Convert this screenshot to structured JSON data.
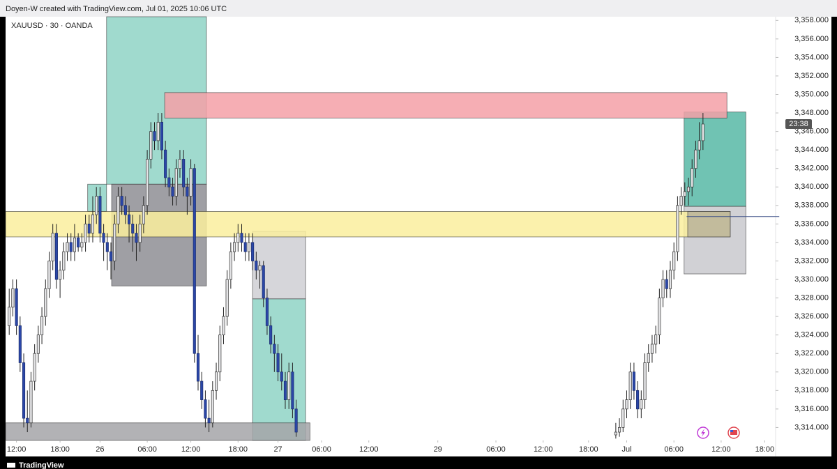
{
  "header": {
    "text": "Doyen-W created with TradingView.com, Jul 01, 2025 10:06 UTC"
  },
  "footer": {
    "brand": "TradingView"
  },
  "chart_data": {
    "type": "candlestick",
    "title": "XAUUSD · 30 · OANDA",
    "up_color": "#e4e4e6",
    "down_color": "#2b47a8",
    "xlim": [
      -3,
      209
    ],
    "ylim": [
      3312.6,
      3358.4
    ],
    "xticks": [
      {
        "value": 0,
        "label": "12:00"
      },
      {
        "value": 12,
        "label": "18:00"
      },
      {
        "value": 23,
        "label": "26"
      },
      {
        "value": 36,
        "label": "06:00"
      },
      {
        "value": 48,
        "label": "12:00"
      },
      {
        "value": 61,
        "label": "18:00"
      },
      {
        "value": 72,
        "label": "27"
      },
      {
        "value": 84,
        "label": "06:00"
      },
      {
        "value": 97,
        "label": "12:00"
      },
      {
        "value": 116,
        "label": "29"
      },
      {
        "value": 132,
        "label": "06:00"
      },
      {
        "value": 145,
        "label": "12:00"
      },
      {
        "value": 157.5,
        "label": "18:00"
      },
      {
        "value": 168,
        "label": "Jul"
      },
      {
        "value": 181,
        "label": "06:00"
      },
      {
        "value": 194,
        "label": "12:00"
      },
      {
        "value": 206,
        "label": "18:00"
      }
    ],
    "yticks": [
      {
        "value": 3314,
        "label": "3,314.000"
      },
      {
        "value": 3316,
        "label": "3,316.000"
      },
      {
        "value": 3318,
        "label": "3,318.000"
      },
      {
        "value": 3320,
        "label": "3,320.000"
      },
      {
        "value": 3322,
        "label": "3,322.000"
      },
      {
        "value": 3324,
        "label": "3,324.000"
      },
      {
        "value": 3326,
        "label": "3,326.000"
      },
      {
        "value": 3328,
        "label": "3,328.000"
      },
      {
        "value": 3330,
        "label": "3,330.000"
      },
      {
        "value": 3332,
        "label": "3,332.000"
      },
      {
        "value": 3334,
        "label": "3,334.000"
      },
      {
        "value": 3336,
        "label": "3,336.000"
      },
      {
        "value": 3338,
        "label": "3,338.000"
      },
      {
        "value": 3340,
        "label": "3,340.000"
      },
      {
        "value": 3342,
        "label": "3,342.000"
      },
      {
        "value": 3344,
        "label": "3,344.000"
      },
      {
        "value": 3346,
        "label": "3,346.000"
      },
      {
        "value": 3348,
        "label": "3,348.000"
      },
      {
        "value": 3350,
        "label": "3,350.000"
      },
      {
        "value": 3352,
        "label": "3,352.000"
      },
      {
        "value": 3354,
        "label": "3,354.000"
      },
      {
        "value": 3356,
        "label": "3,356.000"
      },
      {
        "value": 3358,
        "label": "3,358.000"
      }
    ],
    "price_tag": {
      "value": 3346.8,
      "label": "23:38"
    },
    "level_line": {
      "value": 3336.8,
      "x": [
        184.5,
        210
      ]
    },
    "zones": [
      {
        "x": [
          24.8,
          52.3
        ],
        "y": [
          3340.3,
          3358.4
        ],
        "color": "#8fd3c5"
      },
      {
        "x": [
          19.6,
          24.8
        ],
        "y": [
          3337.35,
          3340.3
        ],
        "color": "#8fd3c5"
      },
      {
        "x": [
          26.2,
          52.3
        ],
        "y": [
          3329.3,
          3340.3
        ],
        "color": "#8e8e94"
      },
      {
        "x": [
          65,
          79.6
        ],
        "y": [
          3327.9,
          3335.2
        ],
        "color": "#cfcfd4"
      },
      {
        "x": [
          65,
          79.6
        ],
        "y": [
          3312.6,
          3327.9
        ],
        "color": "#8fd3c5"
      },
      {
        "x": [
          -3,
          80.8
        ],
        "y": [
          3312.6,
          3314.5
        ],
        "color": "#a4a4a8"
      },
      {
        "x": [
          183.8,
          200.8
        ],
        "y": [
          3337.9,
          3348.1
        ],
        "color": "#57b8a6"
      },
      {
        "x": [
          183.8,
          200.8
        ],
        "y": [
          3330.6,
          3337.9
        ],
        "color": "#c9c9ce"
      },
      {
        "x": [
          40.8,
          195.6
        ],
        "y": [
          3347.45,
          3350.2
        ],
        "color": "#f5a0a7"
      },
      {
        "x": [
          -3,
          196.5
        ],
        "y": [
          3334.6,
          3337.35
        ],
        "color": "#faef9e"
      },
      {
        "x": [
          184.8,
          196.5
        ],
        "y": [
          3334.6,
          3337.35
        ],
        "color": "#b9b39a"
      }
    ],
    "candles": [
      {
        "x": -2,
        "open": 3325,
        "high": 3329,
        "low": 3324,
        "close": 3327
      },
      {
        "x": -1,
        "open": 3327,
        "high": 3330,
        "low": 3326,
        "close": 3329
      },
      {
        "x": 0,
        "open": 3329,
        "high": 3330,
        "low": 3324,
        "close": 3325
      },
      {
        "x": 1,
        "open": 3325,
        "high": 3326,
        "low": 3320,
        "close": 3321
      },
      {
        "x": 2,
        "open": 3321,
        "high": 3322,
        "low": 3314,
        "close": 3315
      },
      {
        "x": 3,
        "open": 3315,
        "high": 3318,
        "low": 3313.5,
        "close": 3314.5
      },
      {
        "x": 4,
        "open": 3314.5,
        "high": 3320,
        "low": 3314,
        "close": 3319
      },
      {
        "x": 5,
        "open": 3319,
        "high": 3323,
        "low": 3318,
        "close": 3322
      },
      {
        "x": 6,
        "open": 3322,
        "high": 3325,
        "low": 3321,
        "close": 3324
      },
      {
        "x": 7,
        "open": 3324,
        "high": 3327,
        "low": 3323,
        "close": 3326
      },
      {
        "x": 8,
        "open": 3326,
        "high": 3330,
        "low": 3325,
        "close": 3329
      },
      {
        "x": 9,
        "open": 3329,
        "high": 3333,
        "low": 3328,
        "close": 3332
      },
      {
        "x": 10,
        "open": 3332,
        "high": 3336,
        "low": 3331,
        "close": 3335
      },
      {
        "x": 11,
        "open": 3335,
        "high": 3336,
        "low": 3329,
        "close": 3330
      },
      {
        "x": 12,
        "open": 3330,
        "high": 3332,
        "low": 3328,
        "close": 3331
      },
      {
        "x": 13,
        "open": 3331,
        "high": 3334,
        "low": 3330,
        "close": 3333
      },
      {
        "x": 14,
        "open": 3333,
        "high": 3335,
        "low": 3332,
        "close": 3334
      },
      {
        "x": 15,
        "open": 3334,
        "high": 3335,
        "low": 3332,
        "close": 3333
      },
      {
        "x": 16,
        "open": 3333,
        "high": 3336,
        "low": 3332,
        "close": 3334.5
      },
      {
        "x": 17,
        "open": 3334.5,
        "high": 3335,
        "low": 3333,
        "close": 3333.5
      },
      {
        "x": 18,
        "open": 3333.5,
        "high": 3335,
        "low": 3333,
        "close": 3334
      },
      {
        "x": 19,
        "open": 3334,
        "high": 3337,
        "low": 3333,
        "close": 3336
      },
      {
        "x": 20,
        "open": 3336,
        "high": 3337,
        "low": 3334,
        "close": 3335
      },
      {
        "x": 21,
        "open": 3335,
        "high": 3339,
        "low": 3334,
        "close": 3337
      },
      {
        "x": 22,
        "open": 3337,
        "high": 3340,
        "low": 3336,
        "close": 3339
      },
      {
        "x": 23,
        "open": 3339,
        "high": 3340,
        "low": 3334,
        "close": 3335
      },
      {
        "x": 24,
        "open": 3335,
        "high": 3336,
        "low": 3332,
        "close": 3334
      },
      {
        "x": 25,
        "open": 3334,
        "high": 3335,
        "low": 3331,
        "close": 3333
      },
      {
        "x": 26,
        "open": 3333,
        "high": 3334,
        "low": 3330,
        "close": 3332
      },
      {
        "x": 27,
        "open": 3332,
        "high": 3337,
        "low": 3331,
        "close": 3336
      },
      {
        "x": 28,
        "open": 3336,
        "high": 3340,
        "low": 3335,
        "close": 3339
      },
      {
        "x": 29,
        "open": 3339,
        "high": 3340,
        "low": 3337,
        "close": 3338
      },
      {
        "x": 30,
        "open": 3338,
        "high": 3339,
        "low": 3336,
        "close": 3337
      },
      {
        "x": 31,
        "open": 3337,
        "high": 3338,
        "low": 3334,
        "close": 3336
      },
      {
        "x": 32,
        "open": 3336,
        "high": 3337,
        "low": 3333,
        "close": 3335
      },
      {
        "x": 33,
        "open": 3335,
        "high": 3336,
        "low": 3332,
        "close": 3334
      },
      {
        "x": 34,
        "open": 3334,
        "high": 3337,
        "low": 3333,
        "close": 3336
      },
      {
        "x": 35,
        "open": 3336,
        "high": 3339,
        "low": 3335,
        "close": 3338
      },
      {
        "x": 36,
        "open": 3338,
        "high": 3344,
        "low": 3337,
        "close": 3343
      },
      {
        "x": 37,
        "open": 3343,
        "high": 3347,
        "low": 3342,
        "close": 3346
      },
      {
        "x": 38,
        "open": 3346,
        "high": 3347,
        "low": 3344,
        "close": 3345
      },
      {
        "x": 39,
        "open": 3345,
        "high": 3348,
        "low": 3344,
        "close": 3347
      },
      {
        "x": 40,
        "open": 3347,
        "high": 3348,
        "low": 3343,
        "close": 3344
      },
      {
        "x": 41,
        "open": 3344,
        "high": 3345,
        "low": 3340,
        "close": 3341
      },
      {
        "x": 42,
        "open": 3341,
        "high": 3342,
        "low": 3339,
        "close": 3340
      },
      {
        "x": 43,
        "open": 3340,
        "high": 3341,
        "low": 3338,
        "close": 3339
      },
      {
        "x": 44,
        "open": 3339,
        "high": 3343,
        "low": 3338,
        "close": 3342
      },
      {
        "x": 45,
        "open": 3342,
        "high": 3344,
        "low": 3341,
        "close": 3343
      },
      {
        "x": 46,
        "open": 3343,
        "high": 3344,
        "low": 3339,
        "close": 3340
      },
      {
        "x": 47,
        "open": 3340,
        "high": 3341,
        "low": 3337,
        "close": 3339
      },
      {
        "x": 48,
        "open": 3339,
        "high": 3343,
        "low": 3338,
        "close": 3342
      },
      {
        "x": 49,
        "open": 3342,
        "high": 3342.5,
        "low": 3321,
        "close": 3322
      },
      {
        "x": 50,
        "open": 3322,
        "high": 3324,
        "low": 3318,
        "close": 3319
      },
      {
        "x": 51,
        "open": 3319,
        "high": 3320,
        "low": 3316,
        "close": 3317
      },
      {
        "x": 52,
        "open": 3317,
        "high": 3318,
        "low": 3314,
        "close": 3315
      },
      {
        "x": 53,
        "open": 3315,
        "high": 3317,
        "low": 3313.5,
        "close": 3314.5
      },
      {
        "x": 54,
        "open": 3314.5,
        "high": 3319,
        "low": 3314,
        "close": 3318
      },
      {
        "x": 55,
        "open": 3318,
        "high": 3321,
        "low": 3317,
        "close": 3320
      },
      {
        "x": 56,
        "open": 3320,
        "high": 3325,
        "low": 3319,
        "close": 3324
      },
      {
        "x": 57,
        "open": 3324,
        "high": 3327,
        "low": 3323,
        "close": 3326
      },
      {
        "x": 58,
        "open": 3326,
        "high": 3331,
        "low": 3325,
        "close": 3330
      },
      {
        "x": 59,
        "open": 3330,
        "high": 3334,
        "low": 3329,
        "close": 3333
      },
      {
        "x": 60,
        "open": 3333,
        "high": 3335,
        "low": 3332,
        "close": 3334
      },
      {
        "x": 61,
        "open": 3334,
        "high": 3336,
        "low": 3333,
        "close": 3335
      },
      {
        "x": 62,
        "open": 3335,
        "high": 3336,
        "low": 3333,
        "close": 3334
      },
      {
        "x": 63,
        "open": 3334,
        "high": 3335,
        "low": 3332,
        "close": 3333
      },
      {
        "x": 64,
        "open": 3333,
        "high": 3335,
        "low": 3332,
        "close": 3334
      },
      {
        "x": 65,
        "open": 3334,
        "high": 3335,
        "low": 3331,
        "close": 3332
      },
      {
        "x": 66,
        "open": 3332,
        "high": 3333,
        "low": 3330,
        "close": 3331
      },
      {
        "x": 67,
        "open": 3331,
        "high": 3332,
        "low": 3329,
        "close": 3331.5
      },
      {
        "x": 68,
        "open": 3331.5,
        "high": 3332,
        "low": 3327,
        "close": 3328
      },
      {
        "x": 69,
        "open": 3328,
        "high": 3329,
        "low": 3324,
        "close": 3325
      },
      {
        "x": 70,
        "open": 3325,
        "high": 3326,
        "low": 3322,
        "close": 3323
      },
      {
        "x": 71,
        "open": 3323,
        "high": 3324,
        "low": 3320,
        "close": 3322
      },
      {
        "x": 72,
        "open": 3322,
        "high": 3323,
        "low": 3319,
        "close": 3320
      },
      {
        "x": 73,
        "open": 3320,
        "high": 3322,
        "low": 3318,
        "close": 3319
      },
      {
        "x": 74,
        "open": 3319,
        "high": 3320,
        "low": 3316,
        "close": 3317
      },
      {
        "x": 75,
        "open": 3317,
        "high": 3321,
        "low": 3316,
        "close": 3320
      },
      {
        "x": 76,
        "open": 3320,
        "high": 3321,
        "low": 3315,
        "close": 3316
      },
      {
        "x": 77,
        "open": 3316,
        "high": 3317,
        "low": 3313,
        "close": 3313.5
      },
      {
        "x": 165,
        "open": 3313.2,
        "high": 3314.5,
        "low": 3312.8,
        "close": 3313.5
      },
      {
        "x": 166,
        "open": 3313.5,
        "high": 3315,
        "low": 3313,
        "close": 3314
      },
      {
        "x": 167,
        "open": 3314,
        "high": 3317,
        "low": 3313.5,
        "close": 3316
      },
      {
        "x": 168,
        "open": 3316,
        "high": 3318,
        "low": 3315,
        "close": 3317
      },
      {
        "x": 169,
        "open": 3317,
        "high": 3321,
        "low": 3316,
        "close": 3320
      },
      {
        "x": 170,
        "open": 3320,
        "high": 3321,
        "low": 3317,
        "close": 3318
      },
      {
        "x": 171,
        "open": 3318,
        "high": 3319,
        "low": 3315,
        "close": 3316
      },
      {
        "x": 172,
        "open": 3316,
        "high": 3318,
        "low": 3315,
        "close": 3317
      },
      {
        "x": 173,
        "open": 3317,
        "high": 3322,
        "low": 3316,
        "close": 3321
      },
      {
        "x": 174,
        "open": 3321,
        "high": 3323,
        "low": 3320,
        "close": 3322
      },
      {
        "x": 175,
        "open": 3322,
        "high": 3324,
        "low": 3321,
        "close": 3323
      },
      {
        "x": 176,
        "open": 3323,
        "high": 3325,
        "low": 3322,
        "close": 3324
      },
      {
        "x": 177,
        "open": 3324,
        "high": 3329,
        "low": 3323,
        "close": 3328
      },
      {
        "x": 178,
        "open": 3328,
        "high": 3331,
        "low": 3327,
        "close": 3330
      },
      {
        "x": 179,
        "open": 3330,
        "high": 3331,
        "low": 3328,
        "close": 3329
      },
      {
        "x": 180,
        "open": 3329,
        "high": 3332,
        "low": 3328,
        "close": 3331
      },
      {
        "x": 181,
        "open": 3331,
        "high": 3334,
        "low": 3330,
        "close": 3333
      },
      {
        "x": 182,
        "open": 3333,
        "high": 3339,
        "low": 3332,
        "close": 3338
      },
      {
        "x": 183,
        "open": 3338,
        "high": 3340,
        "low": 3337,
        "close": 3339
      },
      {
        "x": 184,
        "open": 3339,
        "high": 3340.5,
        "low": 3338,
        "close": 3339.5
      },
      {
        "x": 185,
        "open": 3339.5,
        "high": 3341,
        "low": 3338,
        "close": 3340
      },
      {
        "x": 186,
        "open": 3340,
        "high": 3343,
        "low": 3339,
        "close": 3342
      },
      {
        "x": 187,
        "open": 3342,
        "high": 3345,
        "low": 3341,
        "close": 3344
      },
      {
        "x": 188,
        "open": 3344,
        "high": 3347,
        "low": 3343,
        "close": 3345
      },
      {
        "x": 189,
        "open": 3345,
        "high": 3348,
        "low": 3344,
        "close": 3346.8
      }
    ]
  }
}
